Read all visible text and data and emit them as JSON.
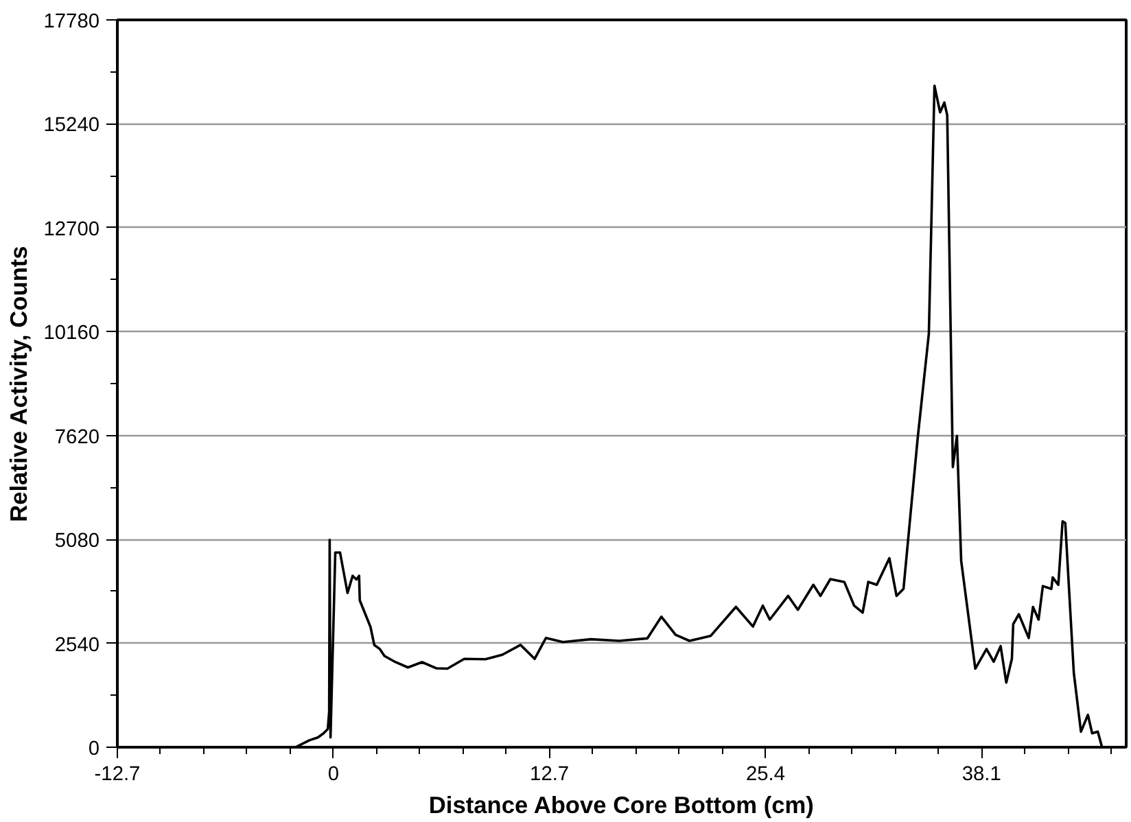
{
  "chart_data": {
    "type": "line",
    "xlabel": "Distance Above Core Bottom (cm)",
    "ylabel": "Relative Activity, Counts",
    "xlim": [
      -12.7,
      46.6
    ],
    "ylim": [
      0,
      17780
    ],
    "xticks": [
      -12.7,
      0,
      12.7,
      25.4,
      38.1
    ],
    "yticks": [
      0,
      2540,
      5080,
      7620,
      10160,
      12700,
      15240,
      17780
    ],
    "grid": "y",
    "series": [
      {
        "color": "#000000",
        "x": [
          -2.23,
          -1.41,
          -0.91,
          -0.58,
          -0.33,
          -0.25,
          -0.22,
          -0.17,
          0.11,
          0.39,
          0.83,
          1.13,
          1.35,
          1.51,
          1.55,
          2.18,
          2.4,
          2.73,
          3.0,
          3.56,
          4.38,
          5.21,
          6.04,
          6.7,
          7.69,
          8.94,
          9.93,
          11.0,
          11.83,
          12.49,
          13.49,
          15.14,
          16.8,
          18.45,
          19.28,
          20.11,
          20.93,
          22.17,
          23.66,
          24.66,
          25.24,
          25.65,
          26.73,
          27.3,
          28.21,
          28.63,
          29.21,
          30.03,
          30.61,
          31.11,
          31.44,
          31.94,
          32.68,
          33.1,
          33.51,
          34.34,
          35.0,
          35.33,
          35.66,
          35.91,
          36.08,
          36.41,
          36.65,
          36.9,
          37.73,
          38.39,
          38.81,
          39.22,
          39.55,
          39.88,
          39.96,
          40.29,
          40.87,
          41.12,
          41.45,
          41.7,
          42.2,
          42.28,
          42.61,
          42.86,
          43.02,
          43.52,
          43.94,
          44.35,
          44.6,
          44.93,
          45.18,
          46.5
        ],
        "values": [
          0,
          170,
          240,
          340,
          445,
          860,
          5070,
          240,
          4760,
          4760,
          3770,
          4190,
          4100,
          4190,
          3590,
          2940,
          2500,
          2400,
          2230,
          2100,
          1950,
          2080,
          1930,
          1920,
          2160,
          2150,
          2260,
          2500,
          2160,
          2670,
          2570,
          2640,
          2600,
          2660,
          3190,
          2750,
          2600,
          2720,
          3430,
          2950,
          3460,
          3120,
          3700,
          3360,
          3970,
          3700,
          4110,
          4040,
          3460,
          3290,
          4040,
          3970,
          4620,
          3700,
          3870,
          7540,
          10110,
          16170,
          15520,
          15760,
          15450,
          6850,
          7610,
          4560,
          1920,
          2400,
          2090,
          2470,
          1580,
          2160,
          3010,
          3250,
          2670,
          3430,
          3120,
          3940,
          3870,
          4150,
          3970,
          5520,
          5480,
          1820,
          380,
          790,
          340,
          380,
          0,
          0
        ]
      }
    ]
  }
}
